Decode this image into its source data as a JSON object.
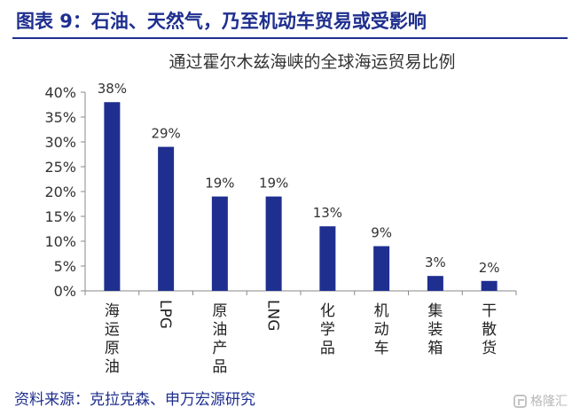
{
  "header": {
    "figure_title": "图表 9：石油、天然气，乃至机动车贸易或受影响"
  },
  "footer": {
    "source": "资料来源：克拉克森、申万宏源研究",
    "watermark": "格隆汇",
    "watermark_icon": "gelonghui-logo-icon"
  },
  "colors": {
    "accent": "#1f2f8f",
    "bar": "#1f2f8f",
    "axis": "#888888"
  },
  "chart_data": {
    "type": "bar",
    "title": "通过霍尔木兹海峡的全球海运贸易比例",
    "xlabel": "",
    "ylabel": "",
    "ylim": [
      0,
      40
    ],
    "yticks": [
      0,
      5,
      10,
      15,
      20,
      25,
      30,
      35,
      40
    ],
    "ytick_labels": [
      "0%",
      "5%",
      "10%",
      "15%",
      "20%",
      "25%",
      "30%",
      "35%",
      "40%"
    ],
    "categories": [
      "海运原油",
      "LPG",
      "原油产品",
      "LNG",
      "化学品",
      "机动车",
      "集装箱",
      "干散货"
    ],
    "category_orientation": [
      "stacked",
      "rotated",
      "stacked",
      "rotated",
      "stacked",
      "stacked",
      "stacked",
      "stacked"
    ],
    "values": [
      38,
      29,
      19,
      19,
      13,
      9,
      3,
      2
    ],
    "data_labels": [
      "38%",
      "29%",
      "19%",
      "19%",
      "13%",
      "9%",
      "3%",
      "2%"
    ],
    "grid": false,
    "legend": "none"
  }
}
